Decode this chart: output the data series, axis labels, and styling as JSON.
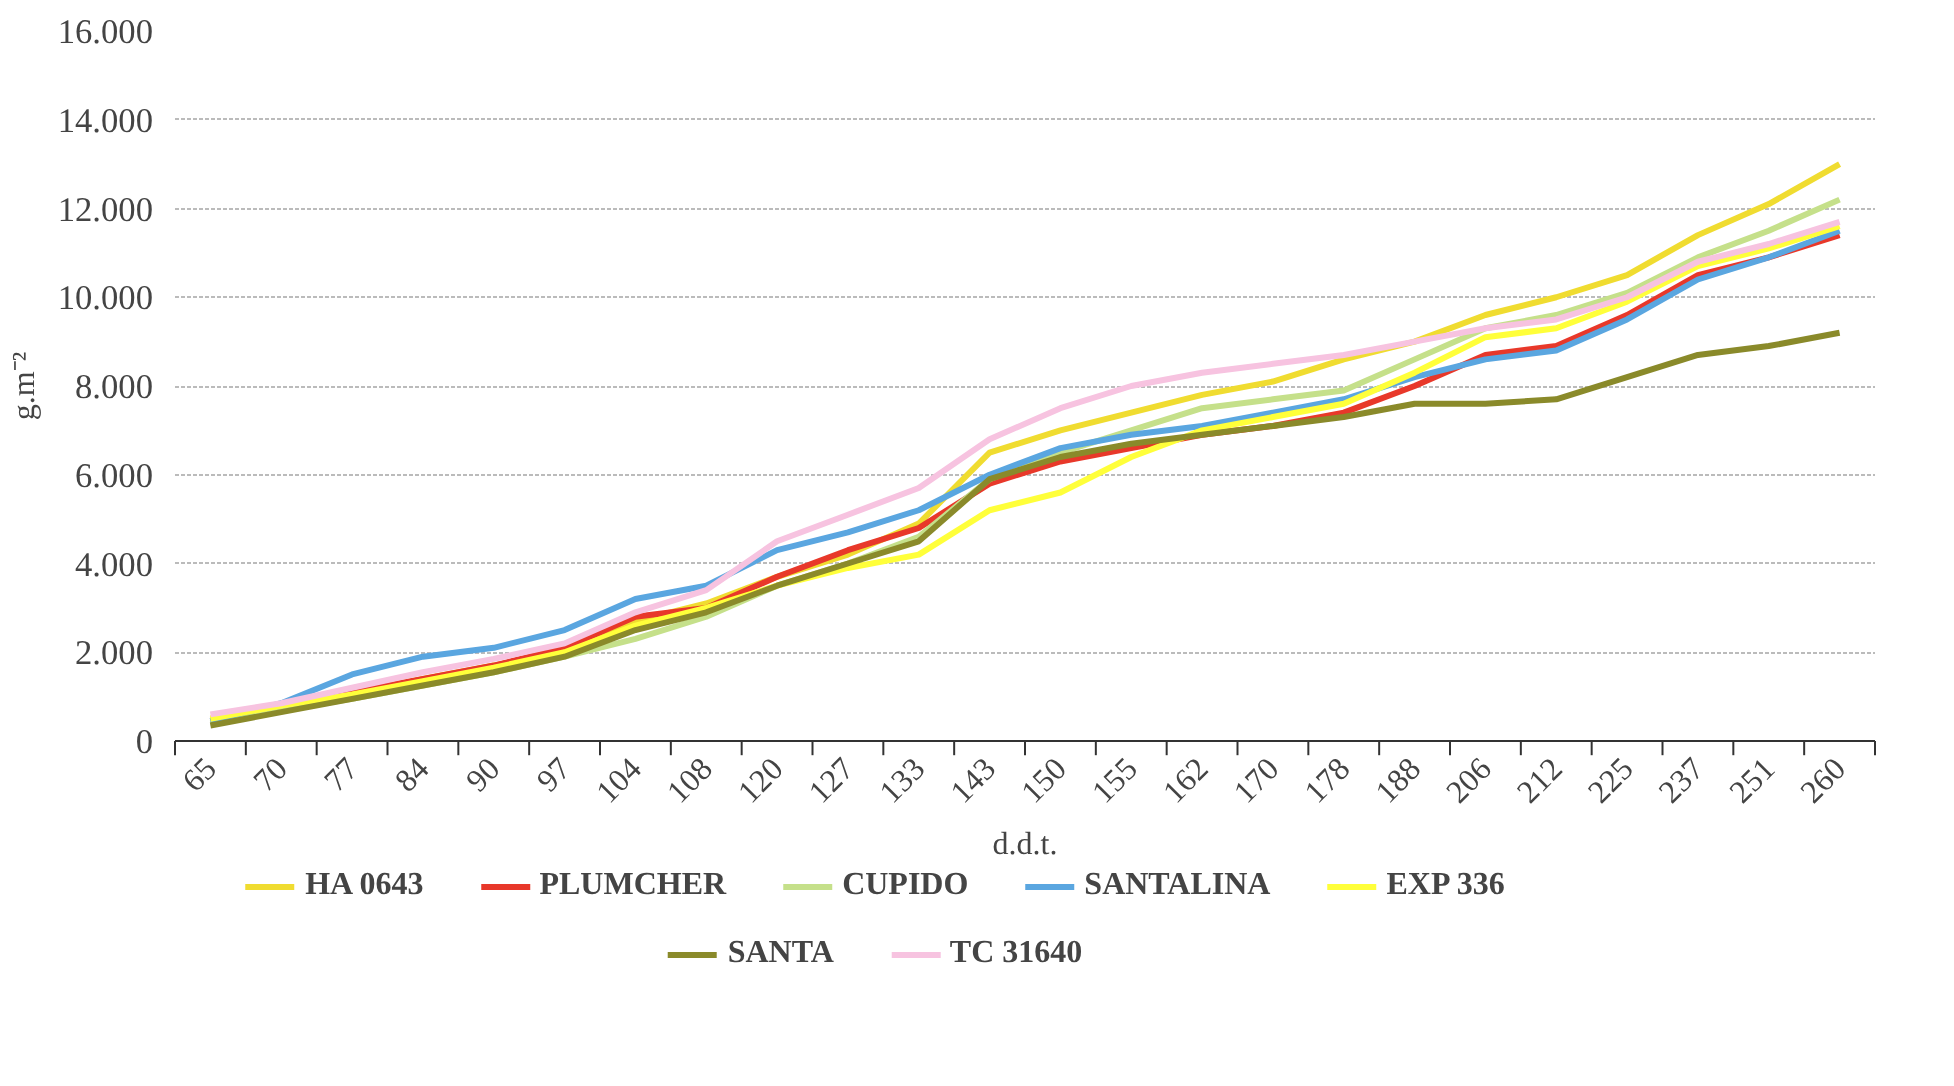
{
  "chart_data": {
    "type": "line",
    "xlabel": "d.d.t.",
    "ylabel": "g.m⁻²",
    "categories": [
      "65",
      "70",
      "77",
      "84",
      "90",
      "97",
      "104",
      "108",
      "120",
      "127",
      "133",
      "143",
      "150",
      "155",
      "162",
      "170",
      "178",
      "188",
      "206",
      "212",
      "225",
      "237",
      "251",
      "260"
    ],
    "ylim": [
      0,
      16000
    ],
    "yticks": [
      0,
      {
        "value": 2000,
        "label": "2.000"
      },
      {
        "value": 4000,
        "label": "4.000"
      },
      {
        "value": 6000,
        "label": "6.000"
      },
      {
        "value": 8000,
        "label": "8.000"
      },
      {
        "value": 10000,
        "label": "10.000"
      },
      {
        "value": 12000,
        "label": "12.000"
      },
      {
        "value": 14000,
        "label": "14.000"
      },
      {
        "value": 16000,
        "label": "16.000"
      }
    ],
    "grid": "y",
    "legend": "bottom",
    "marker": "none",
    "line_style": "solid",
    "series": [
      {
        "name": "HA 0643",
        "color": "#f0dc30",
        "values": [
          500,
          800,
          1100,
          1400,
          1700,
          2000,
          2700,
          3100,
          3700,
          4200,
          4900,
          6500,
          7000,
          7400,
          7800,
          8100,
          8600,
          9000,
          9600,
          10000,
          10500,
          11400,
          12100,
          13000
        ]
      },
      {
        "name": "PLUMCHER",
        "color": "#e8382a",
        "values": [
          450,
          750,
          1100,
          1400,
          1700,
          2100,
          2800,
          3000,
          3700,
          4300,
          4800,
          5800,
          6300,
          6600,
          6900,
          7100,
          7400,
          8000,
          8700,
          8900,
          9600,
          10500,
          10900,
          11400
        ]
      },
      {
        "name": "CUPIDO",
        "color": "#c5e08a",
        "values": [
          400,
          700,
          950,
          1250,
          1550,
          1900,
          2300,
          2800,
          3500,
          4000,
          4600,
          5900,
          6500,
          7000,
          7500,
          7700,
          7900,
          8600,
          9300,
          9600,
          10100,
          10900,
          11500,
          12200
        ]
      },
      {
        "name": "SANTALINA",
        "color": "#5aa6e0",
        "values": [
          450,
          850,
          1500,
          1900,
          2100,
          2500,
          3200,
          3500,
          4300,
          4700,
          5200,
          6000,
          6600,
          6900,
          7100,
          7400,
          7700,
          8200,
          8600,
          8800,
          9500,
          10400,
          10900,
          11500
        ]
      },
      {
        "name": "EXP 336",
        "color": "#ffff3a",
        "values": [
          500,
          800,
          1050,
          1350,
          1650,
          2000,
          2600,
          3000,
          3500,
          3900,
          4200,
          5200,
          5600,
          6400,
          7000,
          7300,
          7600,
          8300,
          9100,
          9300,
          9900,
          10700,
          11100,
          11600
        ]
      },
      {
        "name": "SANTA",
        "color": "#8a8a2a",
        "values": [
          350,
          650,
          950,
          1250,
          1550,
          1900,
          2500,
          2900,
          3500,
          4000,
          4500,
          5900,
          6400,
          6700,
          6900,
          7100,
          7300,
          7600,
          7600,
          7700,
          8200,
          8700,
          8900,
          9200
        ]
      },
      {
        "name": "TC 31640",
        "color": "#f7c3e0",
        "values": [
          600,
          850,
          1200,
          1550,
          1850,
          2200,
          2900,
          3400,
          4500,
          5100,
          5700,
          6800,
          7500,
          8000,
          8300,
          8500,
          8700,
          9000,
          9300,
          9500,
          10000,
          10800,
          11200,
          11700
        ]
      }
    ]
  }
}
